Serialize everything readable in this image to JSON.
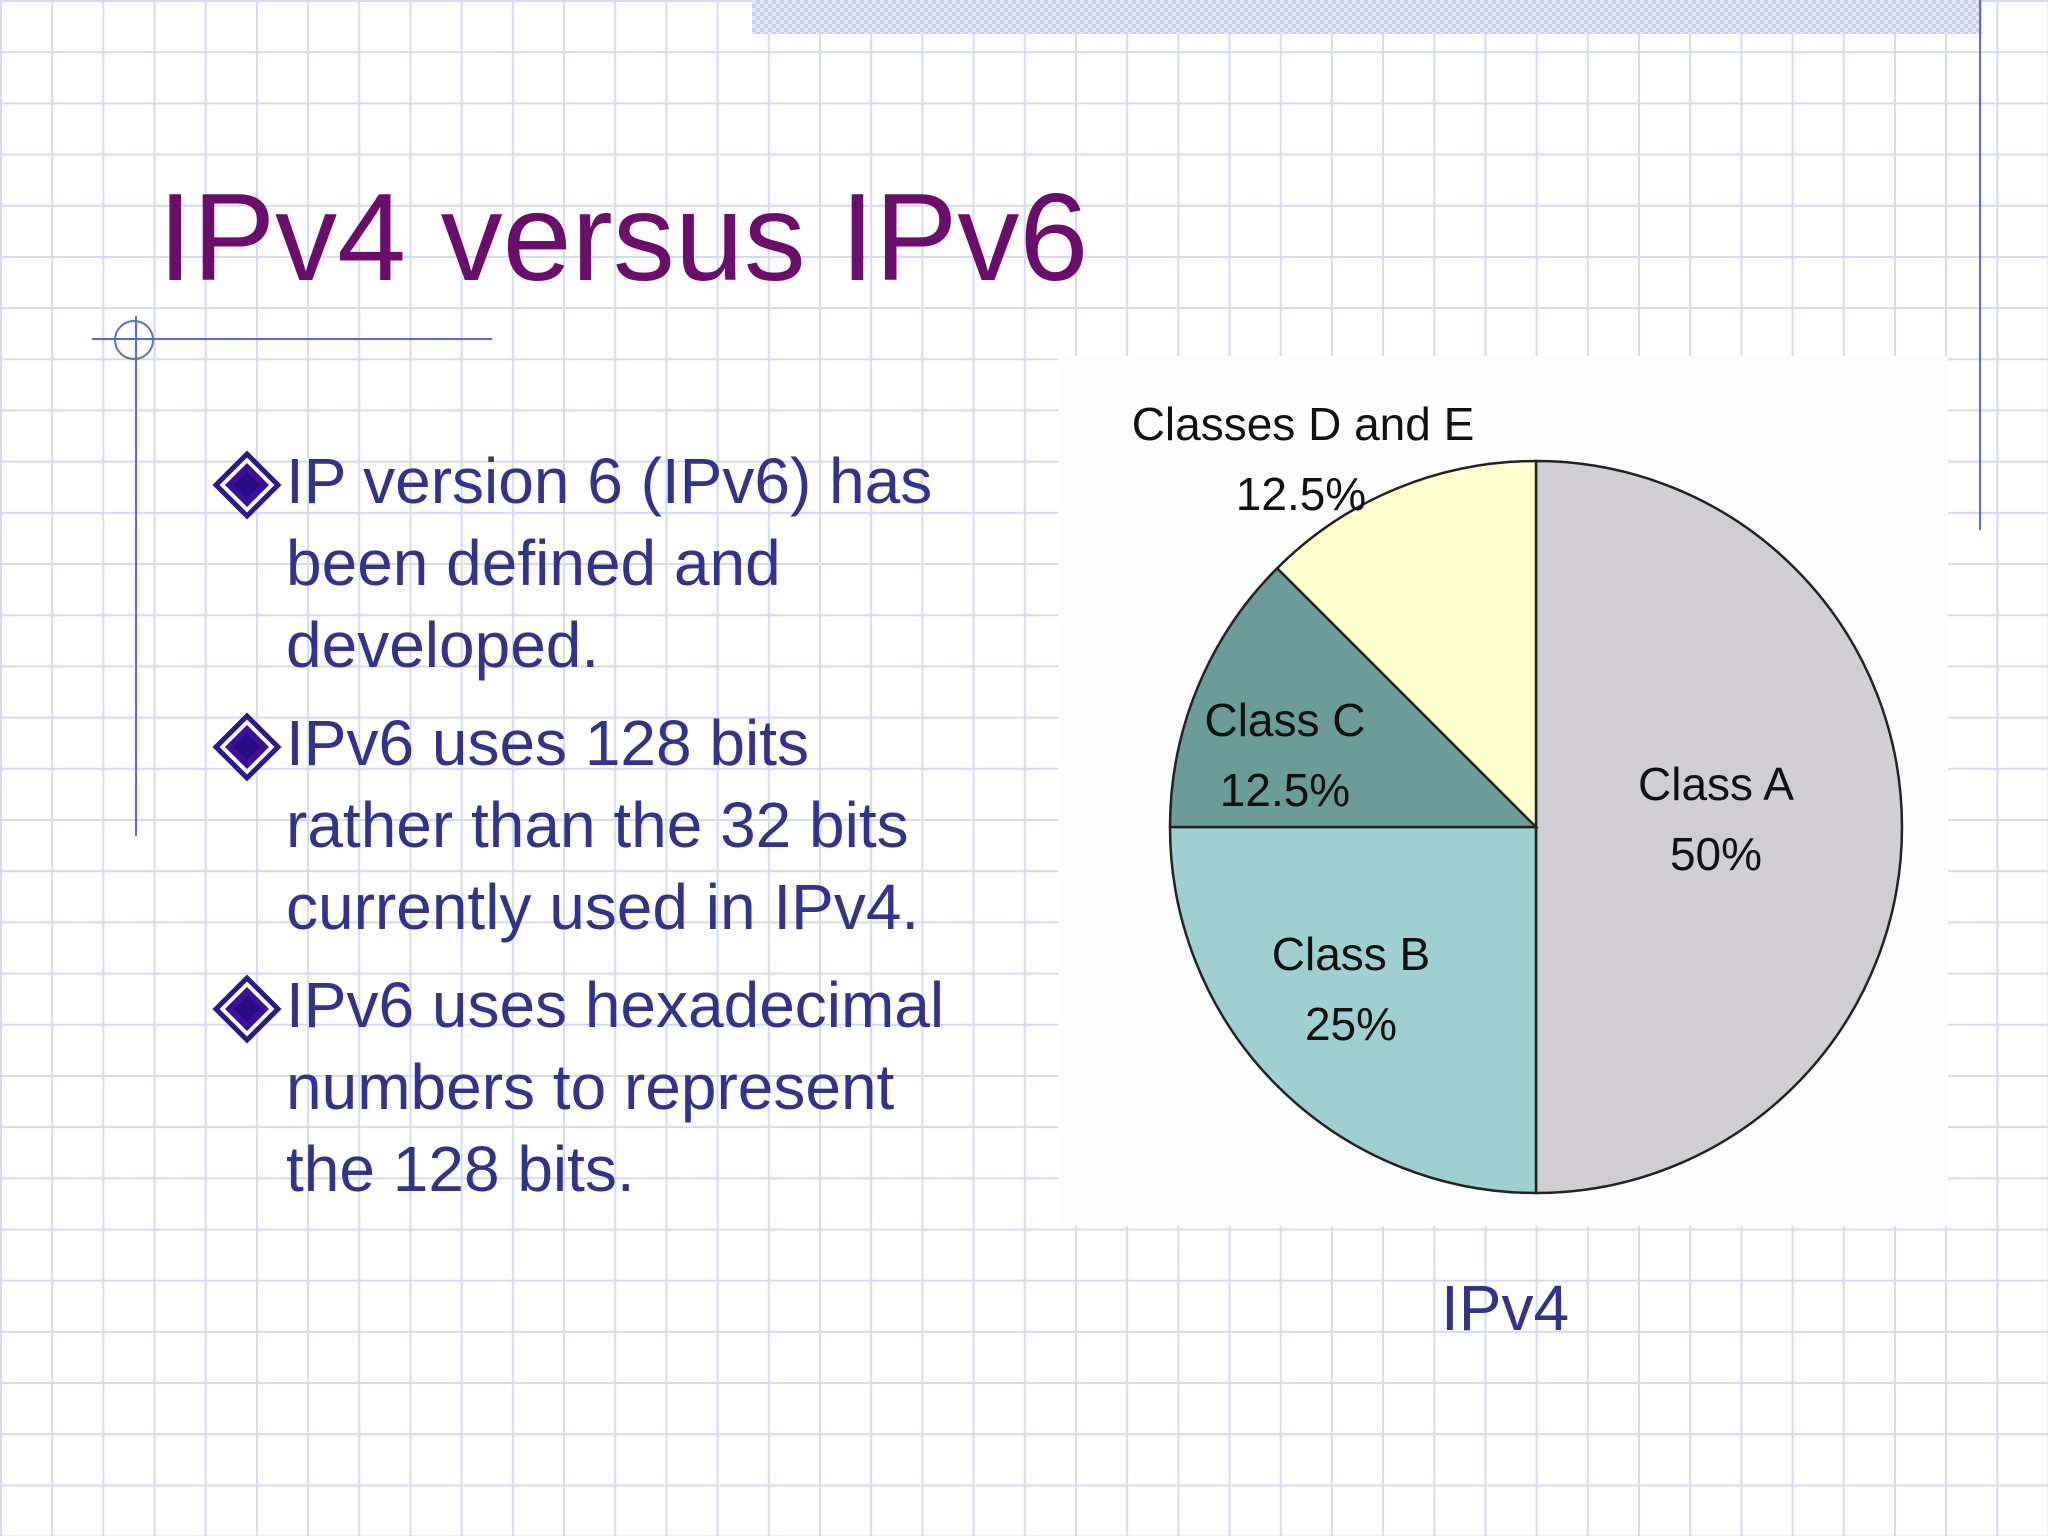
{
  "slide": {
    "title": "IPv4 versus IPv6",
    "bullets": [
      {
        "lines": [
          "IP version 6 (IPv6)  has",
          "been defined and",
          "developed."
        ]
      },
      {
        "lines": [
          "IPv6 uses 128 bits",
          "rather than the 32 bits",
          "currently used in IPv4."
        ]
      },
      {
        "lines": [
          "IPv6 uses hexadecimal",
          "numbers to represent",
          "the 128 bits."
        ]
      }
    ],
    "bullet_icon": "diamond-bullet-icon",
    "chart_caption": "IPv4"
  },
  "colors": {
    "title": "#6b0e6b",
    "body_text": "#33338f",
    "grid": "#d4dcf0",
    "accent_line": "#5c6cd6"
  },
  "chart_data": {
    "type": "pie",
    "title": "",
    "slices": [
      {
        "label": "Class A",
        "value_label": "50%",
        "value": 50,
        "color": "#d0ced2"
      },
      {
        "label": "Class B",
        "value_label": "25%",
        "value": 25,
        "color": "#9fcfd0"
      },
      {
        "label": "Class C",
        "value_label": "12.5%",
        "value": 12.5,
        "color": "#6b9c99"
      },
      {
        "label": "Classes D and E",
        "value_label": "12.5%",
        "value": 12.5,
        "color": "#fefecf"
      }
    ]
  }
}
